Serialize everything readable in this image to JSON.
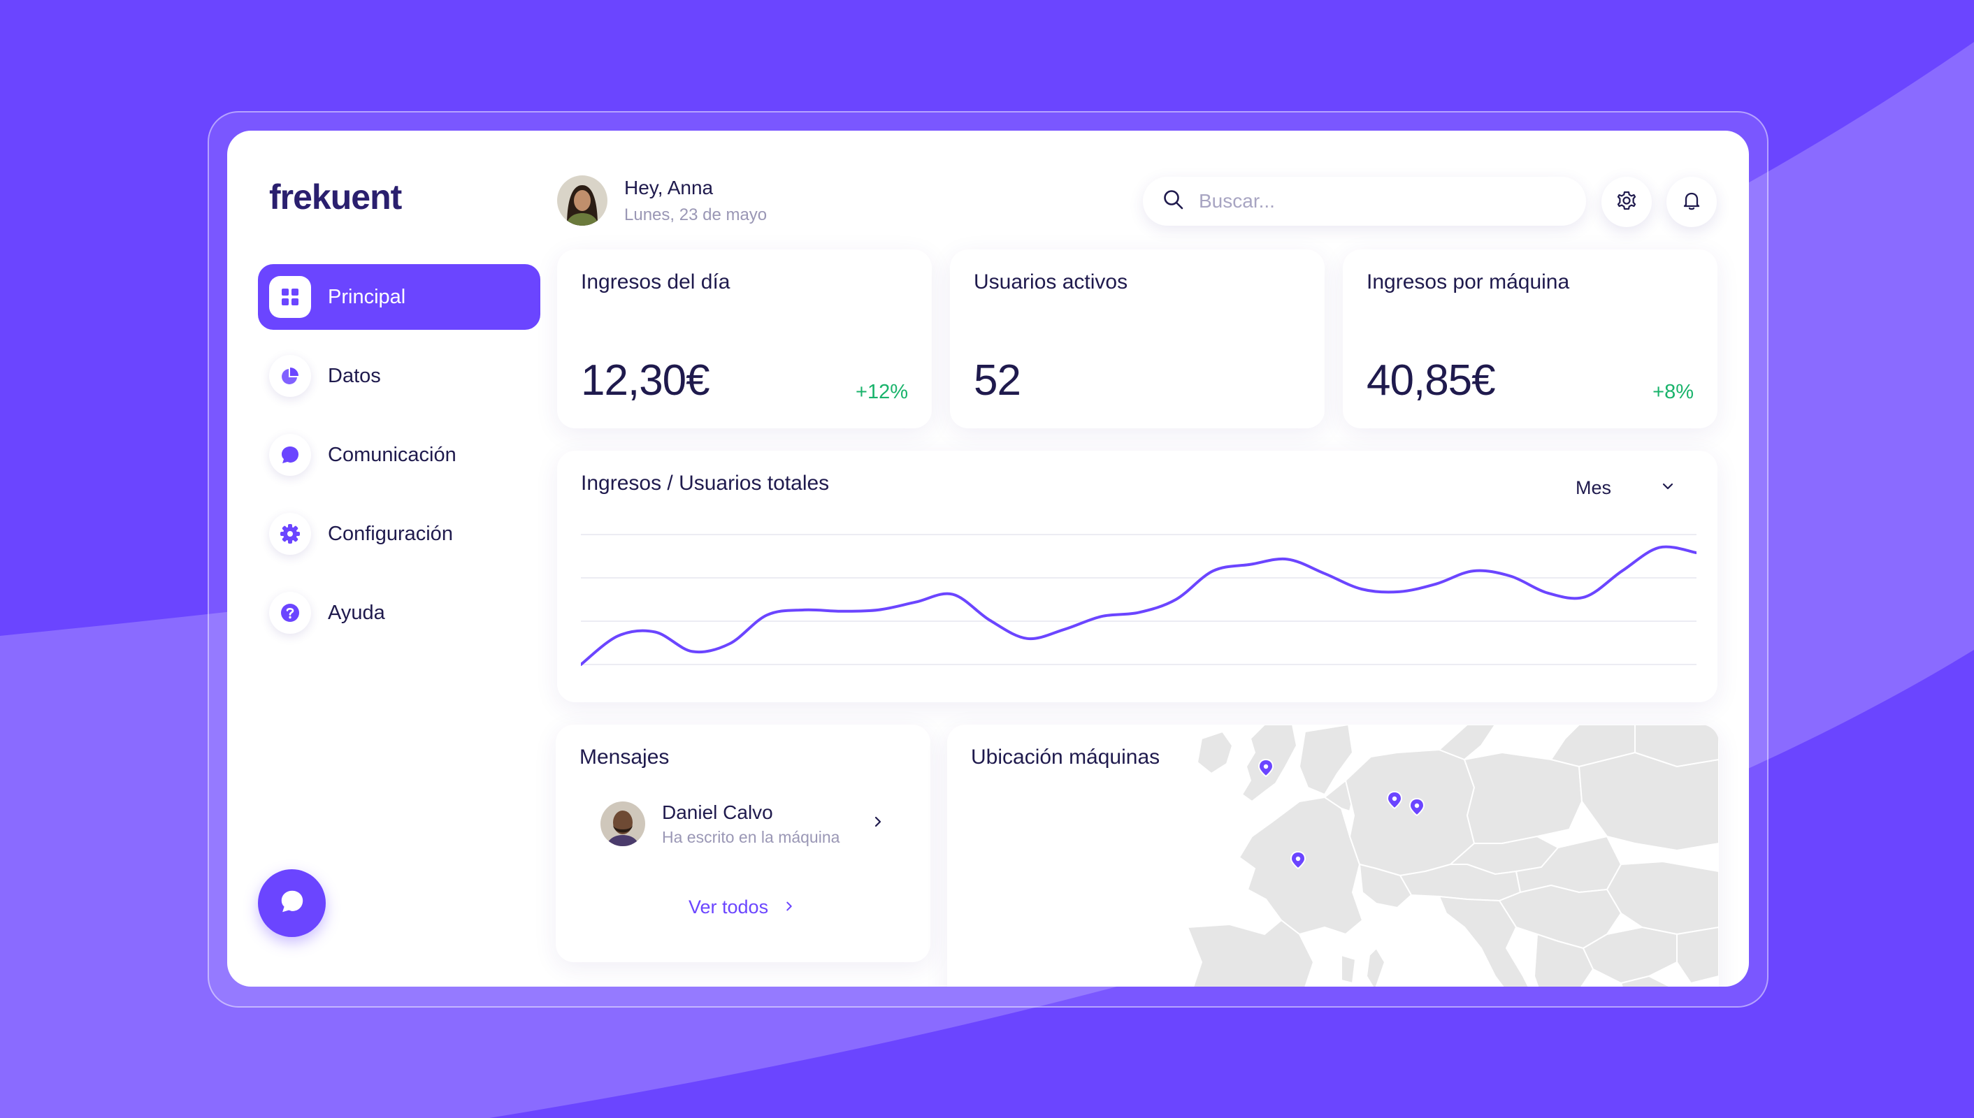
{
  "brand": {
    "logo_text": "frekuent"
  },
  "colors": {
    "accent": "#6b45ff",
    "positive": "#19b36b",
    "text": "#1f1a4d",
    "muted": "#9a97b5",
    "map_land": "#e6e6e6"
  },
  "sidebar": {
    "items": [
      {
        "label": "Principal",
        "icon": "grid-icon",
        "active": true
      },
      {
        "label": "Datos",
        "icon": "pie-chart-icon",
        "active": false
      },
      {
        "label": "Comunicación",
        "icon": "chat-bubble-icon",
        "active": false
      },
      {
        "label": "Configuración",
        "icon": "gear-icon",
        "active": false
      },
      {
        "label": "Ayuda",
        "icon": "help-icon",
        "active": false
      }
    ],
    "chat_button_icon": "chat-bubble-icon"
  },
  "header": {
    "greeting": "Hey, Anna",
    "date": "Lunes, 23 de mayo",
    "search_placeholder": "Buscar...",
    "settings_icon": "gear-icon",
    "notifications_icon": "bell-icon"
  },
  "kpis": [
    {
      "title": "Ingresos del día",
      "value": "12,30€",
      "delta": "+12%"
    },
    {
      "title": "Usuarios activos",
      "value": "52",
      "delta": ""
    },
    {
      "title": "Ingresos por máquina",
      "value": "40,85€",
      "delta": "+8%"
    }
  ],
  "chart": {
    "title": "Ingresos / Usuarios totales",
    "period": "Mes"
  },
  "chart_data": {
    "type": "line",
    "title": "Ingresos / Usuarios totales",
    "xlabel": "",
    "ylabel": "",
    "grid": true,
    "ylim": [
      0,
      100
    ],
    "series": [
      {
        "values": [
          0,
          22,
          25,
          10,
          16,
          38,
          42,
          41,
          42,
          48,
          54,
          34,
          20,
          27,
          37,
          40,
          50,
          72,
          77,
          81,
          70,
          58,
          56,
          62,
          72,
          68,
          55,
          52,
          72,
          90,
          86
        ]
      }
    ]
  },
  "messages": {
    "title": "Mensajes",
    "items": [
      {
        "name": "Daniel Calvo",
        "text": "Ha escrito en la máquina"
      }
    ],
    "see_all": "Ver todos"
  },
  "map": {
    "title": "Ubicación máquinas",
    "marker_icon": "map-pin-icon",
    "marker_count": 4
  }
}
